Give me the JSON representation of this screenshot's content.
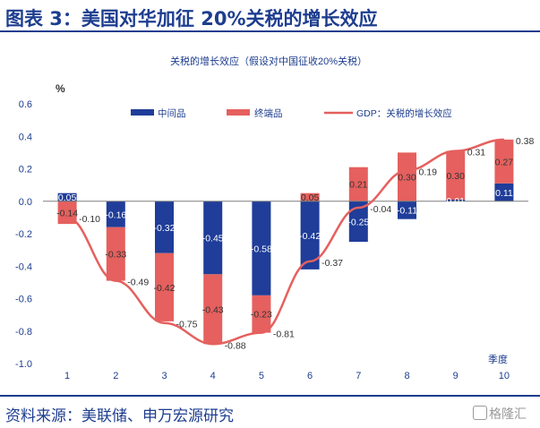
{
  "header": {
    "title": "图表 3：美国对华加征 20%关税的增长效应"
  },
  "footer": {
    "source": "资料来源：美联储、申万宏源研究",
    "watermark": "格隆汇"
  },
  "colors": {
    "intermediate": "#1f3d99",
    "final": "#e5605e",
    "line": "#e5605e",
    "brand": "#1d3d8f"
  },
  "chart_data": {
    "type": "bar",
    "title": "关税的增长效应（假设对中国征收20%关税）",
    "ylabel": "%",
    "xlabel": "季度",
    "ylim": [
      -1.0,
      0.6
    ],
    "yticks": [
      "0.6",
      "0.4",
      "0.2",
      "0.0",
      "-0.2",
      "-0.4",
      "-0.6",
      "-0.8",
      "-1.0"
    ],
    "categories": [
      "1",
      "2",
      "3",
      "4",
      "5",
      "6",
      "7",
      "8",
      "9",
      "10"
    ],
    "legend_position": "top",
    "series": [
      {
        "name": "中间品",
        "kind": "bar",
        "values": [
          0.05,
          -0.16,
          -0.32,
          -0.45,
          -0.58,
          -0.42,
          -0.25,
          -0.11,
          0.01,
          0.11
        ],
        "labels": [
          "0.05",
          "-0.16",
          "-0.32",
          "-0.45",
          "-0.58",
          "-0.42",
          "-0.25",
          "-0.11",
          "0.01",
          "0.11"
        ]
      },
      {
        "name": "终端品",
        "kind": "bar",
        "values": [
          -0.14,
          -0.33,
          -0.42,
          -0.43,
          -0.23,
          0.05,
          0.21,
          0.3,
          0.3,
          0.27
        ],
        "labels": [
          "-0.14",
          "-0.33",
          "-0.42",
          "-0.43",
          "-0.23",
          "0.05",
          "0.21",
          "0.30",
          "0.30",
          "0.27"
        ]
      },
      {
        "name": "GDP：关税的增长效应",
        "kind": "line",
        "values": [
          -0.1,
          -0.49,
          -0.75,
          -0.88,
          -0.81,
          -0.37,
          -0.04,
          0.19,
          0.31,
          0.38
        ],
        "labels": [
          "-0.10",
          "-0.49",
          "-0.75",
          "-0.88",
          "-0.81",
          "-0.37",
          "-0.04",
          "0.19",
          "0.31",
          "0.38"
        ]
      }
    ]
  }
}
